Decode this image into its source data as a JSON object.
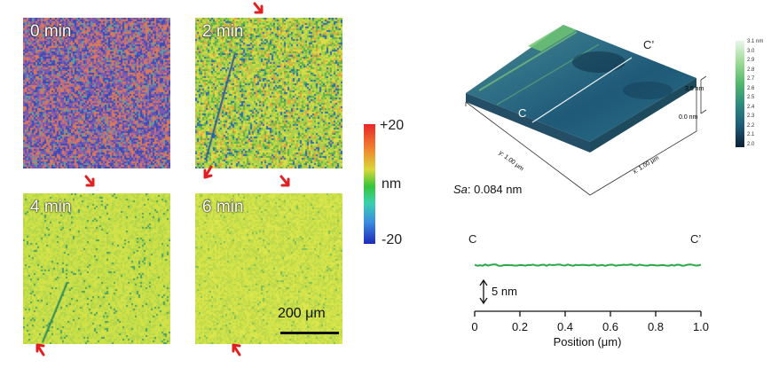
{
  "maps": [
    {
      "label": "0 min"
    },
    {
      "label": "2 min"
    },
    {
      "label": "4 min"
    },
    {
      "label": "6 min"
    }
  ],
  "colorbar": {
    "max_label": "+20",
    "unit_label": "nm",
    "min_label": "-20"
  },
  "scalebar": {
    "label": "200 μm"
  },
  "surface3d": {
    "marker_c": "C",
    "marker_c_prime": "C’",
    "sa_label": "Sa",
    "sa_value": ": 0.084 nm",
    "y_axis_label": "y: 1.00 μm",
    "x_axis_label": "x: 1.00 μm",
    "z_top_label": "3.5 nm",
    "z_bottom_label": "0.0 nm",
    "colorbar_ticks": [
      "3.1 nm",
      "3.0",
      "2.9",
      "2.8",
      "2.7",
      "2.6",
      "2.5",
      "2.4",
      "2.3",
      "2.2",
      "2.1",
      "2.0"
    ]
  },
  "profile": {
    "left_marker": "C",
    "right_marker": "C’",
    "scale_label": "5 nm",
    "xlabel": "Position (μm)",
    "ticks": [
      "0",
      "0.2",
      "0.4",
      "0.6",
      "0.8",
      "1.0"
    ],
    "line_color": "#2aa84a"
  }
}
